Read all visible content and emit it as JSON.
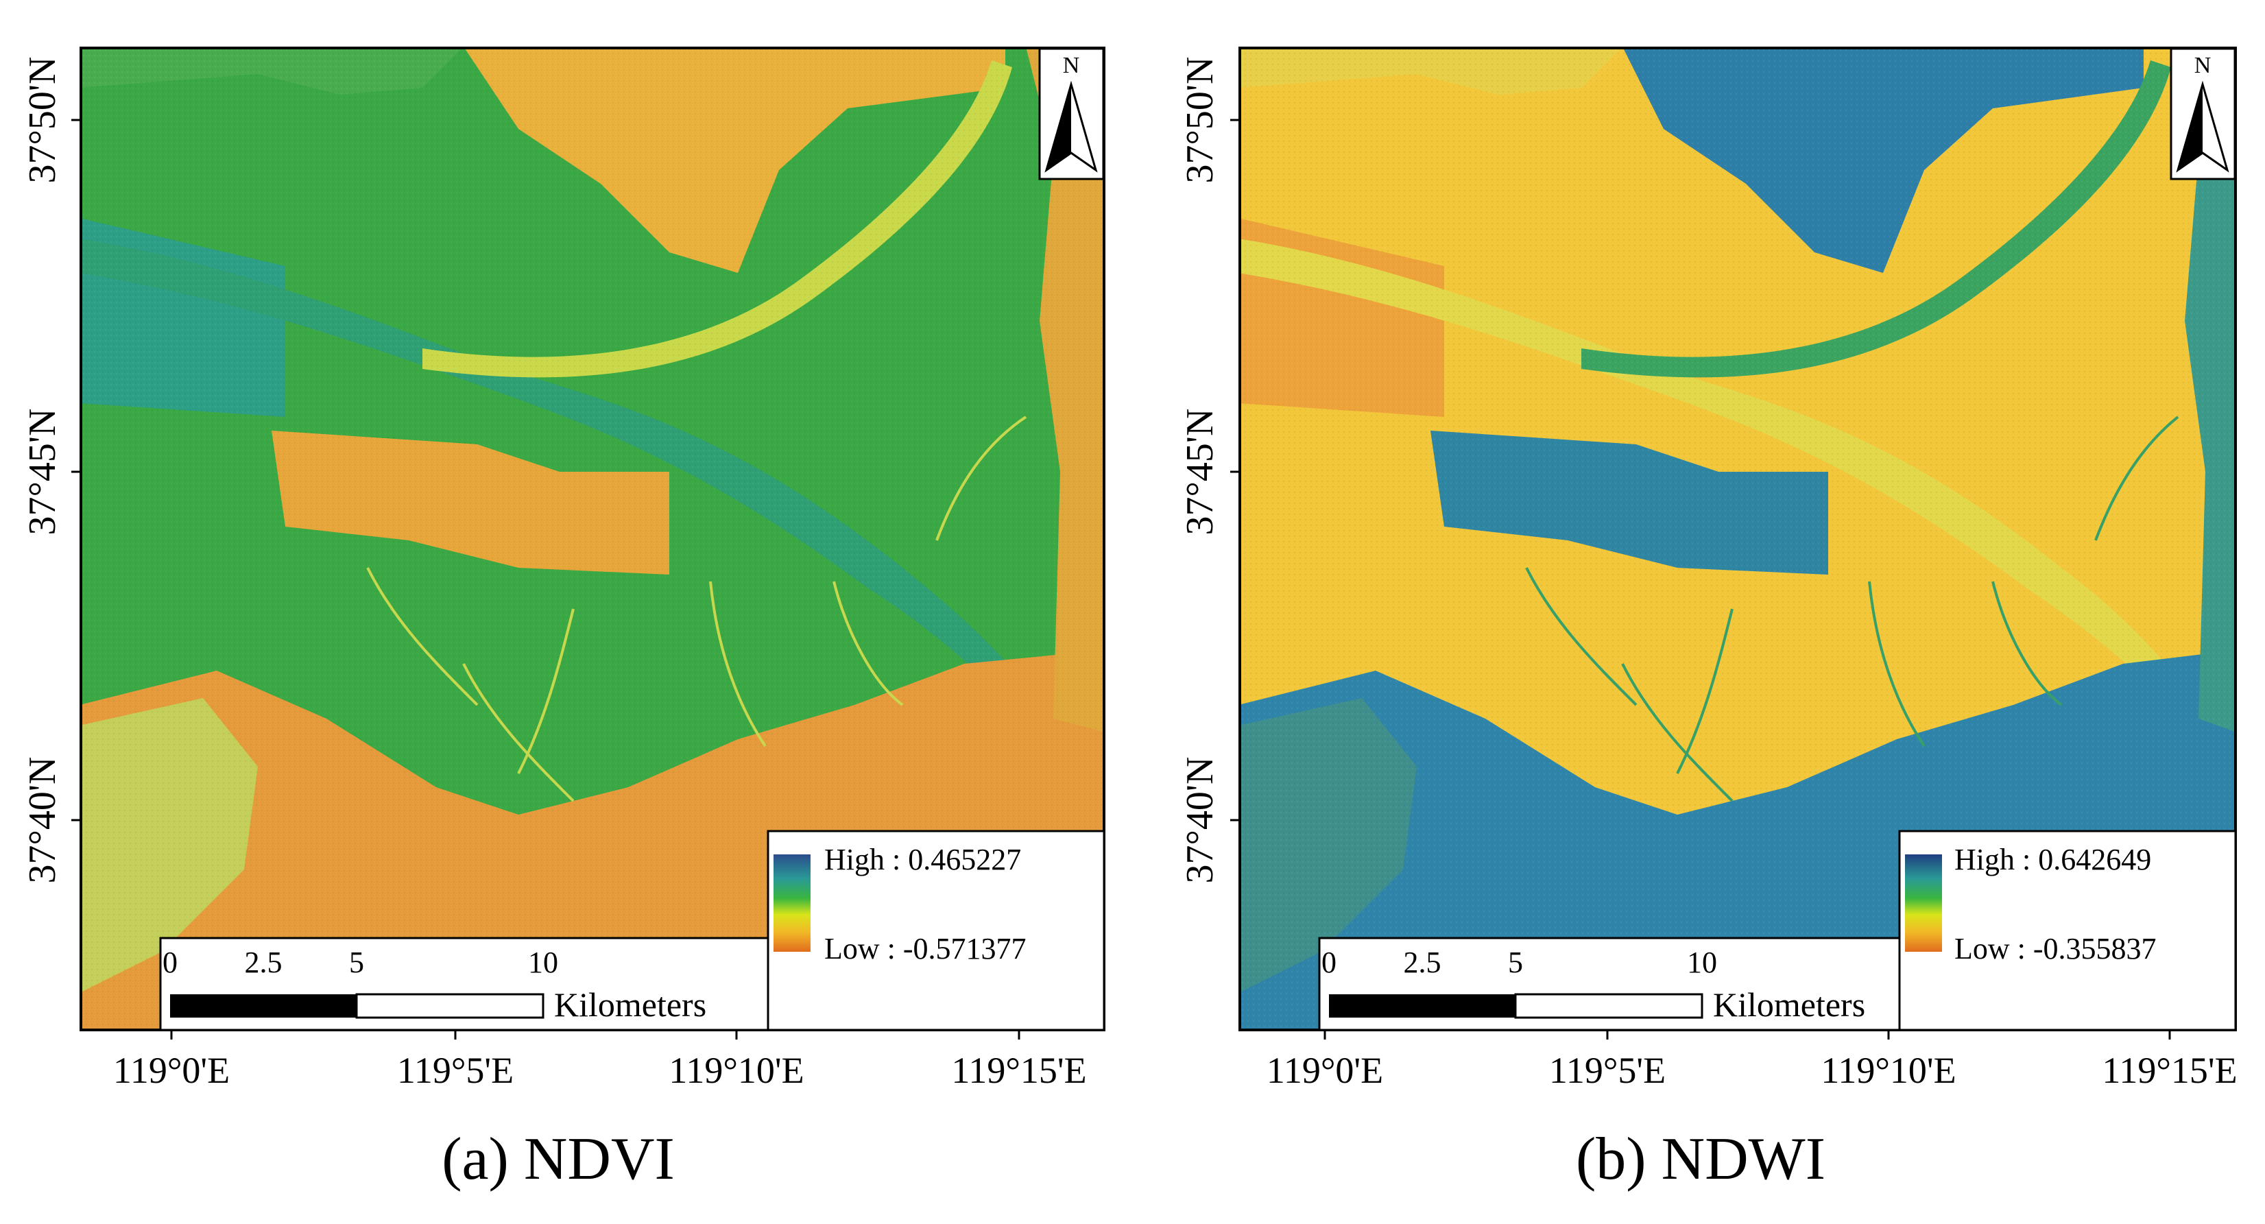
{
  "colors": {
    "ramp": [
      "#2b4d8c",
      "#2a9a96",
      "#39b53f",
      "#d9e51a",
      "#f2b827",
      "#e06c1e"
    ],
    "frame": "#000000",
    "arrow": "#000000"
  },
  "icons": {
    "north_arrow": "north-arrow-icon"
  },
  "figure": {
    "panels": [
      {
        "id": "a",
        "caption": "(a) NDVI",
        "index": "NDVI",
        "legend": {
          "high": "High : 0.465227",
          "low": "Low : -0.571377"
        },
        "dominant_colors": {
          "upper_field": "#3aa844",
          "lower_field": "#e9a13a",
          "water": "#d8b84a"
        },
        "north_label": "N",
        "scale_bar": {
          "ticks": [
            "0",
            "2.5",
            "5",
            "10"
          ],
          "unit": "Kilometers"
        },
        "lat_labels": [
          "37°50'N",
          "37°45'N",
          "37°40'N"
        ],
        "lon_labels": [
          "119°0'E",
          "119°5'E",
          "119°10'E",
          "119°15'E"
        ]
      },
      {
        "id": "b",
        "caption": "(b) NDWI",
        "index": "NDWI",
        "legend": {
          "high": "High : 0.642649",
          "low": "Low : -0.355837"
        },
        "dominant_colors": {
          "upper_field": "#f2c73a",
          "lower_field": "#f0bb3a",
          "water": "#2d7ea8"
        },
        "north_label": "N",
        "scale_bar": {
          "ticks": [
            "0",
            "2.5",
            "5",
            "10"
          ],
          "unit": "Kilometers"
        },
        "lat_labels": [
          "37°50'N",
          "37°45'N",
          "37°40'N"
        ],
        "lon_labels": [
          "119°0'E",
          "119°5'E",
          "119°10'E",
          "119°15'E"
        ]
      }
    ]
  }
}
